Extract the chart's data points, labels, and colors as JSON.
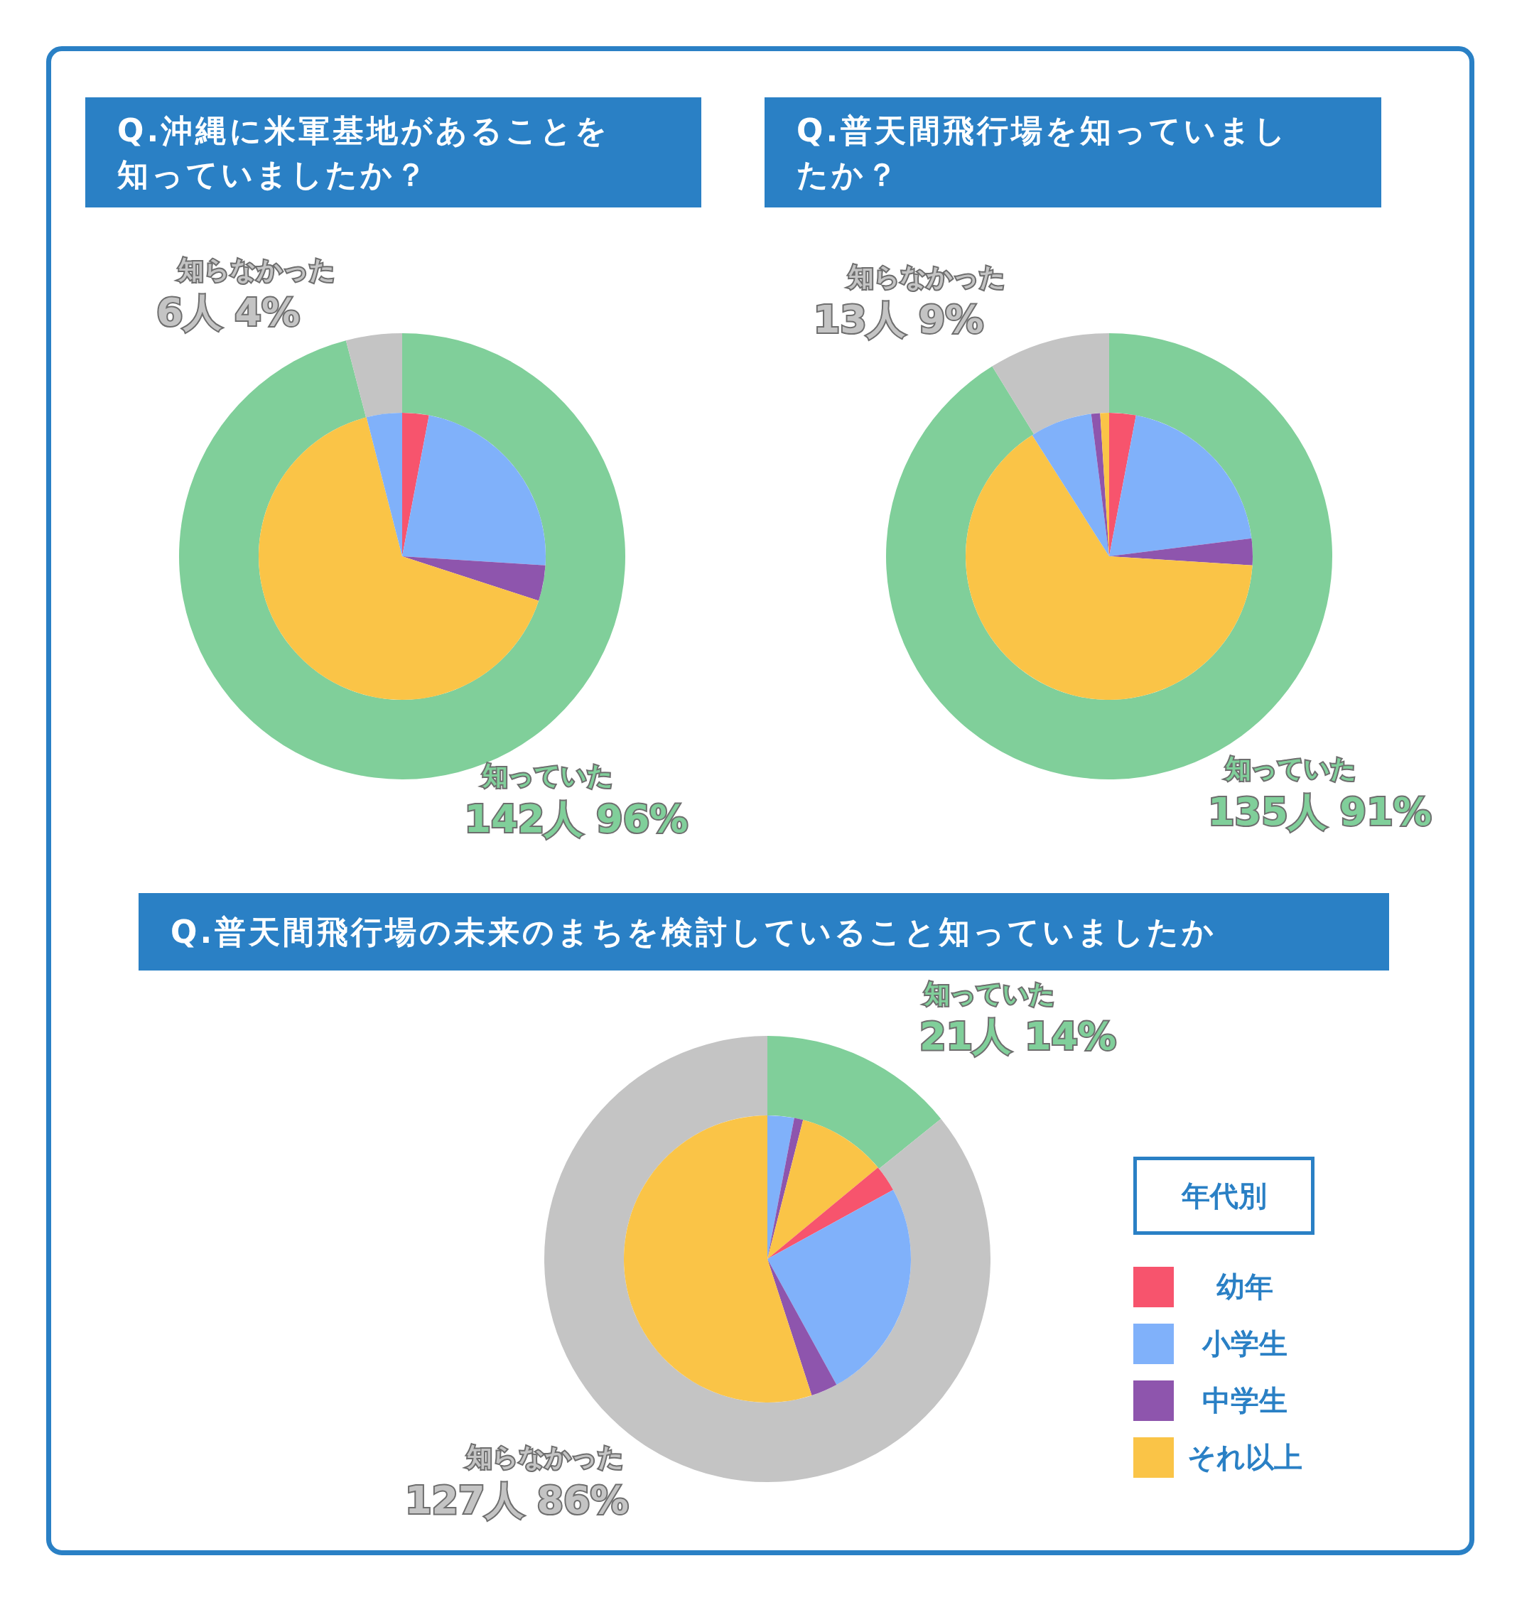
{
  "chart_data": [
    {
      "type": "donut",
      "title": "Q.沖縄に米軍基地があることを知っていましたか？",
      "categories": [
        "知っていた",
        "知らなかった"
      ],
      "values": [
        142,
        6
      ],
      "colors": [
        "#80cf9a",
        "#c4c4c4"
      ],
      "value_labels": [
        "142人 96%",
        "6人 4%"
      ]
    },
    {
      "type": "pie",
      "categories": [
        null,
        null,
        null,
        null,
        null
      ],
      "values": [
        3,
        23,
        4,
        66,
        4
      ],
      "colors": [
        "#f7546d",
        "#80b1fa",
        "#8e55ad",
        "#fac447",
        "#80b1fa"
      ]
    },
    {
      "type": "donut",
      "title": "Q.普天間飛行場を知っていましたか？",
      "categories": [
        "知っていた",
        "知らなかった"
      ],
      "values": [
        135,
        13
      ],
      "colors": [
        "#80cf9a",
        "#c4c4c4"
      ],
      "value_labels": [
        "135人 91%",
        "13人 9%"
      ]
    },
    {
      "type": "pie",
      "categories": [
        null,
        null,
        null,
        null,
        null,
        null,
        null
      ],
      "values": [
        3,
        20,
        3,
        65,
        7,
        1,
        1
      ],
      "colors": [
        "#f7546d",
        "#80b1fa",
        "#8e55ad",
        "#fac447",
        "#80b1fa",
        "#8e55ad",
        "#fac447"
      ]
    },
    {
      "type": "donut",
      "title": "Q.普天間飛行場の未来のまちを検討していること知っていましたか",
      "categories": [
        "知っていた",
        "知らなかった"
      ],
      "values": [
        21,
        127
      ],
      "colors": [
        "#80cf9a",
        "#c4c4c4"
      ],
      "value_labels": [
        "21人 14%",
        "127人 86%"
      ]
    },
    {
      "type": "pie",
      "categories": [
        null,
        null,
        null,
        "幼年",
        "小学生",
        "中学生",
        "それ以上"
      ],
      "values": [
        3,
        1,
        10,
        3,
        25,
        3,
        55
      ],
      "colors": [
        "#80b1fa",
        "#8e55ad",
        "#fac447",
        "#f7546d",
        "#80b1fa",
        "#8e55ad",
        "#fac447"
      ],
      "legend": "right",
      "legend_title": "年代別"
    }
  ]
}
